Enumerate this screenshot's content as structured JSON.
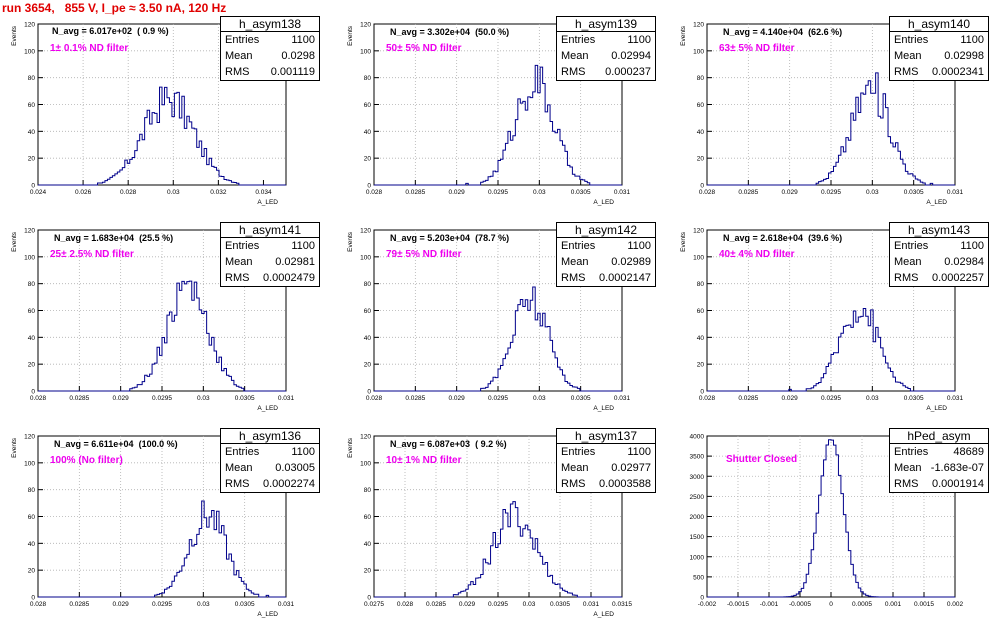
{
  "header": {
    "run_label": "run 3654,   855 V, I_pe ≈ 3.50 nA, 120 Hz"
  },
  "colors": {
    "histogram": "#00008b",
    "title": "#e00000",
    "filter_text": "#ee00ee",
    "grid": "#b0b0b0"
  },
  "chart_data": [
    {
      "type": "histogram",
      "hist_name": "h_asym138",
      "n_avg": "N_avg = 6.017e+02  ( 0.9 %)",
      "filter": "1± 0.1% ND filter",
      "stats": {
        "entries": "1100",
        "mean": "0.0298",
        "rms": "0.001119"
      },
      "ylabel": "Events",
      "xlabel": "A_LED",
      "xlim": [
        0.024,
        0.035
      ],
      "ylim": [
        0,
        120
      ],
      "xticks": [
        "0.024",
        "0.026",
        "0.028",
        "0.03",
        "0.032",
        "0.034"
      ],
      "yticks": [
        "0",
        "20",
        "40",
        "60",
        "80",
        "100",
        "120"
      ],
      "mean_value": 0.0298,
      "sigma": 0.00112,
      "peak": 64,
      "grid": true
    },
    {
      "type": "histogram",
      "hist_name": "h_asym139",
      "n_avg": "N_avg = 3.302e+04  (50.0 %)",
      "filter": "50± 5% ND filter",
      "stats": {
        "entries": "1100",
        "mean": "0.02994",
        "rms": "0.000237"
      },
      "ylabel": "Events",
      "xlabel": "A_LED",
      "xlim": [
        0.028,
        0.031
      ],
      "ylim": [
        0,
        120
      ],
      "xticks": [
        "0.028",
        "0.0285",
        "0.029",
        "0.0295",
        "0.03",
        "0.0305",
        "0.031"
      ],
      "yticks": [
        "0",
        "20",
        "40",
        "60",
        "80",
        "100",
        "120"
      ],
      "mean_value": 0.02994,
      "sigma": 0.000237,
      "peak": 77,
      "grid": true
    },
    {
      "type": "histogram",
      "hist_name": "h_asym140",
      "n_avg": "N_avg = 4.140e+04  (62.6 %)",
      "filter": "63± 5% ND filter",
      "stats": {
        "entries": "1100",
        "mean": "0.02998",
        "rms": "0.0002341"
      },
      "ylabel": "Events",
      "xlabel": "A_LED",
      "xlim": [
        0.028,
        0.031
      ],
      "ylim": [
        0,
        120
      ],
      "xticks": [
        "0.028",
        "0.0285",
        "0.029",
        "0.0295",
        "0.03",
        "0.0305",
        "0.031"
      ],
      "yticks": [
        "0",
        "20",
        "40",
        "60",
        "80",
        "100",
        "120"
      ],
      "mean_value": 0.02998,
      "sigma": 0.000234,
      "peak": 72,
      "grid": true
    },
    {
      "type": "histogram",
      "hist_name": "h_asym141",
      "n_avg": "N_avg = 1.683e+04  (25.5 %)",
      "filter": "25± 2.5% ND filter",
      "stats": {
        "entries": "1100",
        "mean": "0.02981",
        "rms": "0.0002479"
      },
      "ylabel": "Events",
      "xlabel": "A_LED",
      "xlim": [
        0.028,
        0.031
      ],
      "ylim": [
        0,
        120
      ],
      "xticks": [
        "0.028",
        "0.0285",
        "0.029",
        "0.0295",
        "0.03",
        "0.0305",
        "0.031"
      ],
      "yticks": [
        "0",
        "20",
        "40",
        "60",
        "80",
        "100",
        "120"
      ],
      "mean_value": 0.02981,
      "sigma": 0.000248,
      "peak": 79,
      "grid": true
    },
    {
      "type": "histogram",
      "hist_name": "h_asym142",
      "n_avg": "N_avg = 5.203e+04  (78.7 %)",
      "filter": "79± 5% ND filter",
      "stats": {
        "entries": "1100",
        "mean": "0.02989",
        "rms": "0.0002147"
      },
      "ylabel": "Events",
      "xlabel": "A_LED",
      "xlim": [
        0.028,
        0.031
      ],
      "ylim": [
        0,
        120
      ],
      "xticks": [
        "0.028",
        "0.0285",
        "0.029",
        "0.0295",
        "0.03",
        "0.0305",
        "0.031"
      ],
      "yticks": [
        "0",
        "20",
        "40",
        "60",
        "80",
        "100",
        "120"
      ],
      "mean_value": 0.02989,
      "sigma": 0.000215,
      "peak": 68,
      "grid": true
    },
    {
      "type": "histogram",
      "hist_name": "h_asym143",
      "n_avg": "N_avg = 2.618e+04  (39.6 %)",
      "filter": "40± 4% ND filter",
      "stats": {
        "entries": "1100",
        "mean": "0.02984",
        "rms": "0.0002257"
      },
      "ylabel": "Events",
      "xlabel": "A_LED",
      "xlim": [
        0.028,
        0.031
      ],
      "ylim": [
        0,
        120
      ],
      "xticks": [
        "0.028",
        "0.0285",
        "0.029",
        "0.0295",
        "0.03",
        "0.0305",
        "0.031"
      ],
      "yticks": [
        "0",
        "20",
        "40",
        "60",
        "80",
        "100",
        "120"
      ],
      "mean_value": 0.02984,
      "sigma": 0.000226,
      "peak": 64,
      "grid": true
    },
    {
      "type": "histogram",
      "hist_name": "h_asym136",
      "n_avg": "N_avg = 6.611e+04  (100.0 %)",
      "filter": "100% (No filter)",
      "stats": {
        "entries": "1100",
        "mean": "0.03005",
        "rms": "0.0002274"
      },
      "ylabel": "Events",
      "xlabel": "A_LED",
      "xlim": [
        0.028,
        0.031
      ],
      "ylim": [
        0,
        120
      ],
      "xticks": [
        "0.028",
        "0.0285",
        "0.029",
        "0.0295",
        "0.03",
        "0.0305",
        "0.031"
      ],
      "yticks": [
        "0",
        "20",
        "40",
        "60",
        "80",
        "100",
        "120"
      ],
      "mean_value": 0.03005,
      "sigma": 0.000227,
      "peak": 61,
      "grid": true
    },
    {
      "type": "histogram",
      "hist_name": "h_asym137",
      "n_avg": "N_avg = 6.087e+03  ( 9.2 %)",
      "filter": "10± 1% ND filter",
      "stats": {
        "entries": "1100",
        "mean": "0.02977",
        "rms": "0.0003588"
      },
      "ylabel": "Events",
      "xlabel": "A_LED",
      "xlim": [
        0.0275,
        0.0315
      ],
      "ylim": [
        0,
        120
      ],
      "xticks": [
        "0.0275",
        "0.028",
        "0.0285",
        "0.029",
        "0.0295",
        "0.03",
        "0.0305",
        "0.031",
        "0.0315"
      ],
      "yticks": [
        "0",
        "20",
        "40",
        "60",
        "80",
        "100",
        "120"
      ],
      "mean_value": 0.02977,
      "sigma": 0.000359,
      "peak": 60,
      "grid": true
    },
    {
      "type": "histogram",
      "hist_name": "hPed_asym",
      "n_avg": "",
      "filter": "Shutter Closed",
      "stats": {
        "entries": "48689",
        "mean": "-1.683e-07",
        "rms": "0.0001914"
      },
      "ylabel": "",
      "xlabel": "",
      "xlim": [
        -0.002,
        0.002
      ],
      "ylim": [
        0,
        4000
      ],
      "xticks": [
        "-0.002",
        "-0.0015",
        "-0.001",
        "-0.0005",
        "0",
        "0.0005",
        "0.001",
        "0.0015",
        "0.002"
      ],
      "yticks": [
        "0",
        "500",
        "1000",
        "1500",
        "2000",
        "2500",
        "3000",
        "3500",
        "4000"
      ],
      "mean_value": 0,
      "sigma": 0.000191,
      "peak": 4000,
      "grid": true
    }
  ]
}
